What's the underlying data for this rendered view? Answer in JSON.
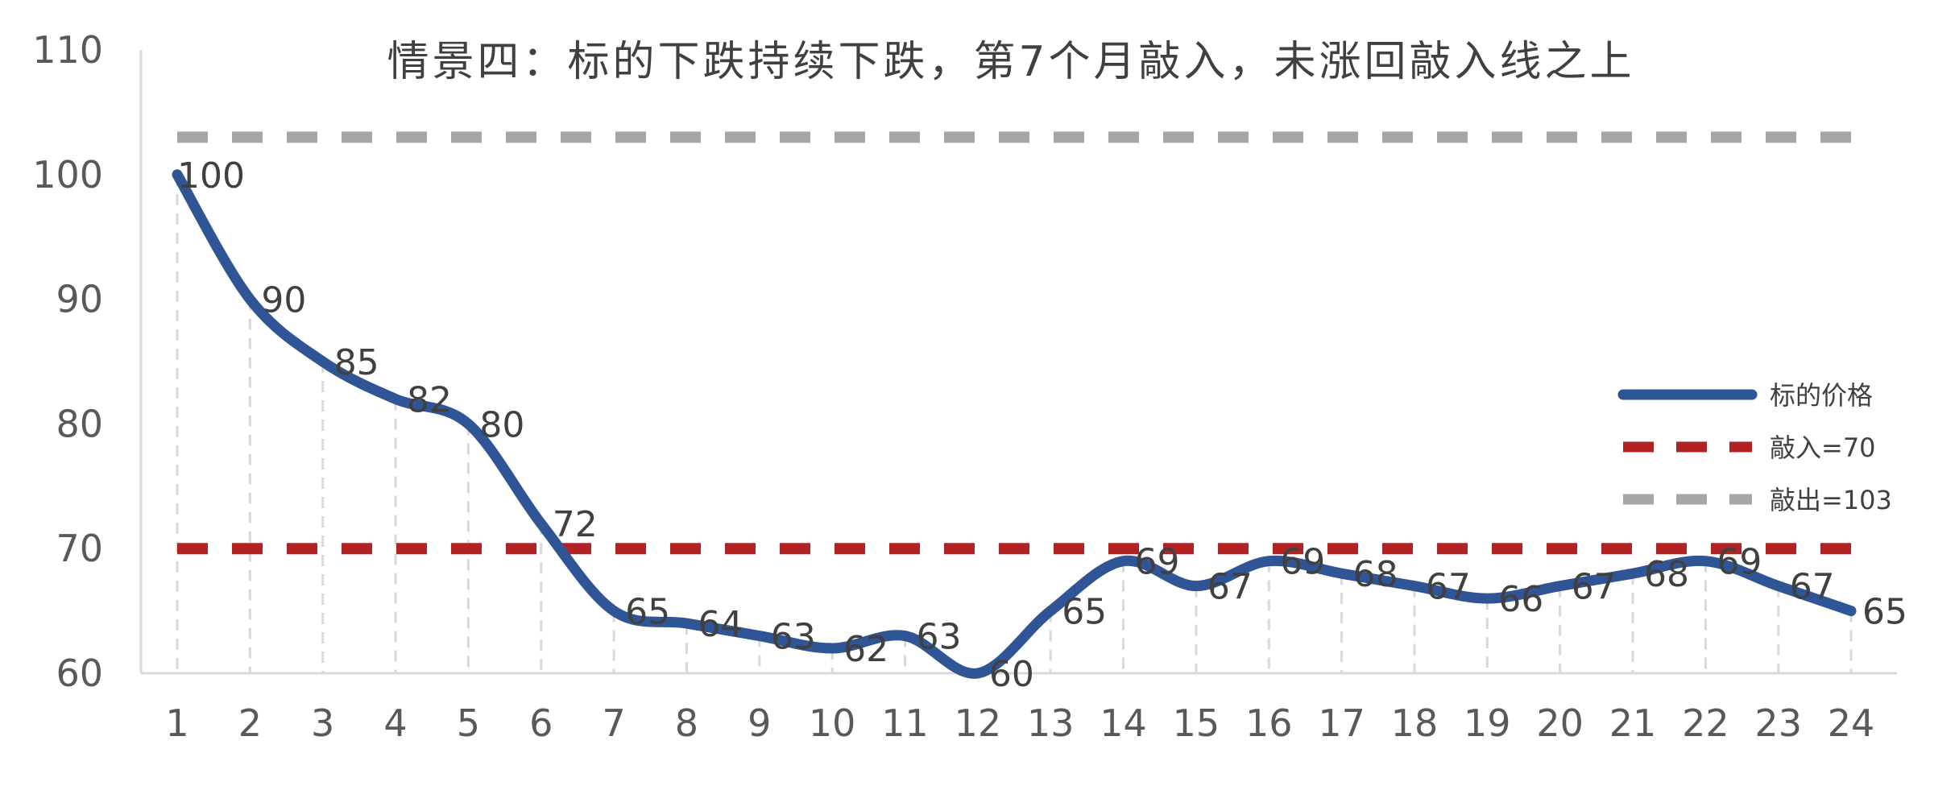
{
  "chart_data": {
    "type": "line",
    "title": "情景四：标的下跌持续下跌，第7个月敲入，未涨回敲入线之上",
    "xlabel": "",
    "ylabel": "",
    "categories": [
      "1",
      "2",
      "3",
      "4",
      "5",
      "6",
      "7",
      "8",
      "9",
      "10",
      "11",
      "12",
      "13",
      "14",
      "15",
      "16",
      "17",
      "18",
      "19",
      "20",
      "21",
      "22",
      "23",
      "24"
    ],
    "ylim": [
      60,
      110
    ],
    "yticks": [
      "60",
      "70",
      "80",
      "90",
      "100",
      "110"
    ],
    "grid": "vertical dashed drop lines at each x",
    "legend_position": "right",
    "series": [
      {
        "name": "标的价格",
        "values": [
          100,
          90,
          85,
          82,
          80,
          72,
          65,
          64,
          63,
          62,
          63,
          60,
          65,
          69,
          67,
          69,
          68,
          67,
          66,
          67,
          68,
          69,
          67,
          65
        ],
        "color": "#2F5597",
        "style": "solid"
      },
      {
        "name": "敲入=70",
        "values": [
          70,
          70,
          70,
          70,
          70,
          70,
          70,
          70,
          70,
          70,
          70,
          70,
          70,
          70,
          70,
          70,
          70,
          70,
          70,
          70,
          70,
          70,
          70,
          70
        ],
        "color": "#B22222",
        "style": "dashed"
      },
      {
        "name": "敲出=103",
        "values": [
          103,
          103,
          103,
          103,
          103,
          103,
          103,
          103,
          103,
          103,
          103,
          103,
          103,
          103,
          103,
          103,
          103,
          103,
          103,
          103,
          103,
          103,
          103,
          103
        ],
        "color": "#A6A6A6",
        "style": "dashed"
      }
    ],
    "data_labels": [
      "100",
      "90",
      "85",
      "82",
      "80",
      "72",
      "65",
      "64",
      "63",
      "62",
      "63",
      "60",
      "65",
      "69",
      "67",
      "69",
      "68",
      "67",
      "66",
      "67",
      "68",
      "69",
      "67",
      "65"
    ]
  }
}
